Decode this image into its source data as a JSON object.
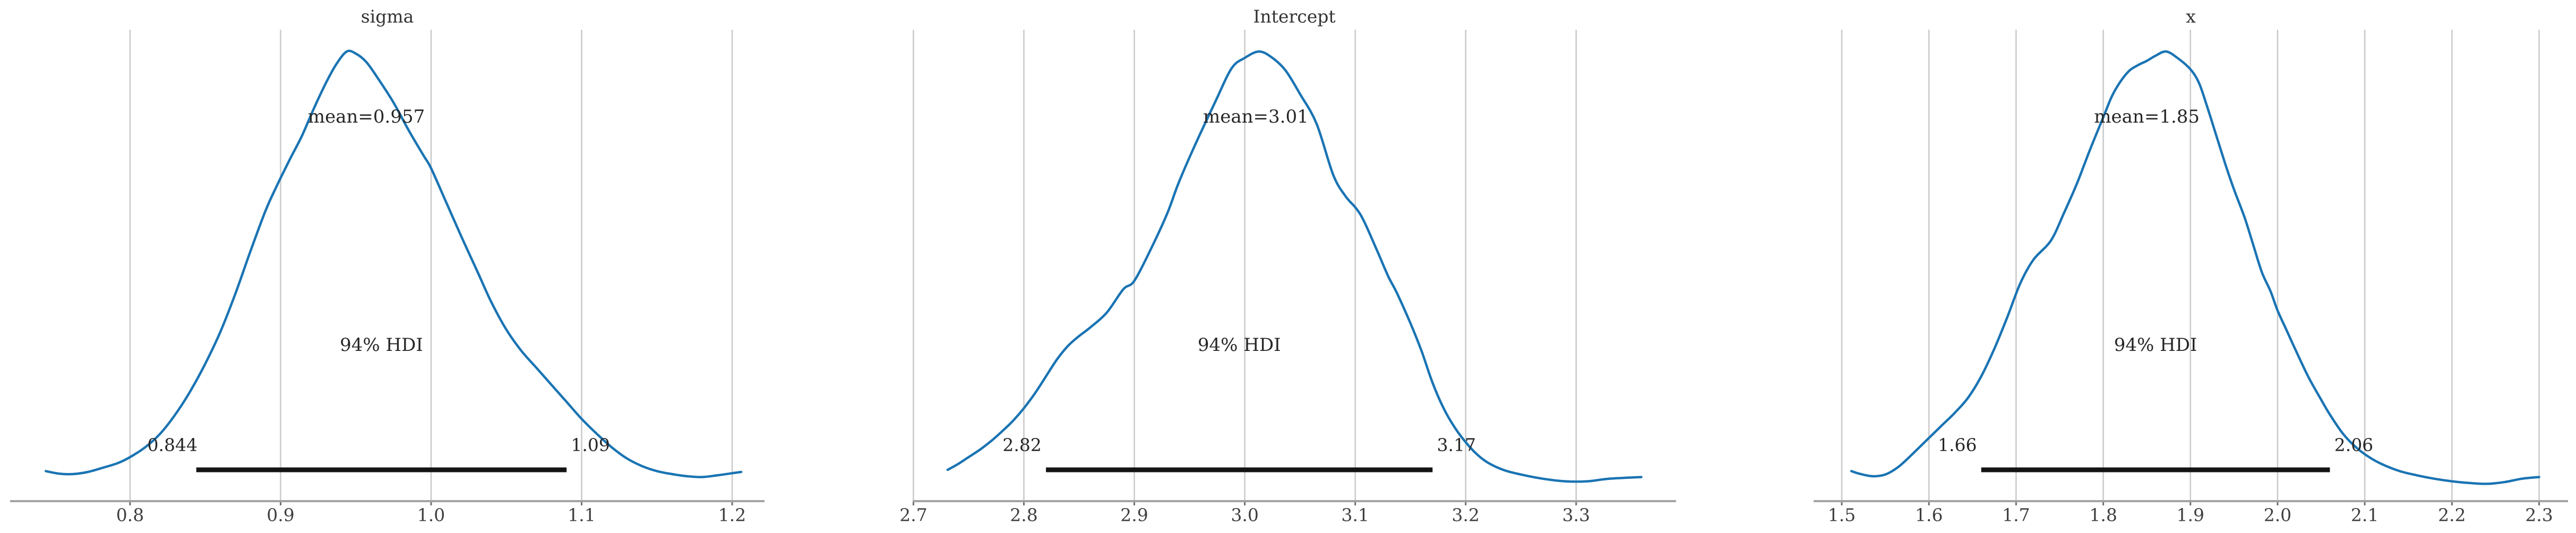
{
  "figure": {
    "background": "#ffffff",
    "kind": "posterior-kde-grid",
    "hdi_probability_text": "94% HDI"
  },
  "colors": {
    "curve": "#1a74b3",
    "hdi_bar": "#141414",
    "axis_line": "#a3a3a3",
    "grid_line": "#c9c9c9",
    "tick_mark": "#707070",
    "tick_label_text": "#3f3f3f",
    "title_text": "#333333",
    "annotation_text": "#262626"
  },
  "chart_data": [
    {
      "type": "kde",
      "title": "sigma",
      "mean": 0.957,
      "mean_label": "mean=0.957",
      "hdi_low": 0.844,
      "hdi_high": 1.09,
      "hdi_low_label": "0.844",
      "hdi_high_label": "1.09",
      "hdi_text": "94% HDI",
      "grid": true,
      "legend_position": "none",
      "xlim": [
        0.7203,
        1.2215
      ],
      "ticks": [
        0.8,
        0.9,
        1.0,
        1.1,
        1.2
      ],
      "tick_labels": [
        "0.8",
        "0.9",
        "1.0",
        "1.1",
        "1.2"
      ],
      "curve": {
        "x": [
          0.744,
          0.753,
          0.762,
          0.772,
          0.782,
          0.792,
          0.8,
          0.81,
          0.82,
          0.83,
          0.84,
          0.85,
          0.86,
          0.87,
          0.88,
          0.89,
          0.897,
          0.906,
          0.914,
          0.922,
          0.93,
          0.937,
          0.944,
          0.95,
          0.957,
          0.965,
          0.975,
          0.985,
          0.995,
          1.0,
          1.01,
          1.02,
          1.031,
          1.04,
          1.05,
          1.06,
          1.07,
          1.08,
          1.09,
          1.1,
          1.11,
          1.12,
          1.13,
          1.14,
          1.15,
          1.16,
          1.17,
          1.18,
          1.19,
          1.2,
          1.206
        ],
        "y_norm": [
          0.012,
          0.006,
          0.005,
          0.01,
          0.02,
          0.031,
          0.045,
          0.068,
          0.1,
          0.145,
          0.2,
          0.265,
          0.34,
          0.43,
          0.53,
          0.625,
          0.68,
          0.745,
          0.8,
          0.865,
          0.925,
          0.97,
          1.0,
          0.995,
          0.975,
          0.935,
          0.88,
          0.815,
          0.755,
          0.725,
          0.645,
          0.565,
          0.48,
          0.41,
          0.345,
          0.295,
          0.255,
          0.215,
          0.175,
          0.135,
          0.1,
          0.068,
          0.042,
          0.024,
          0.012,
          0.005,
          0.0,
          -0.002,
          0.002,
          0.007,
          0.01
        ]
      }
    },
    {
      "type": "kde",
      "title": "Intercept",
      "mean": 3.01,
      "mean_label": "mean=3.01",
      "hdi_low": 2.82,
      "hdi_high": 3.17,
      "hdi_low_label": "2.82",
      "hdi_high_label": "3.17",
      "hdi_text": "94% HDI",
      "grid": true,
      "legend_position": "none",
      "xlim": [
        2.6993,
        3.3905
      ],
      "ticks": [
        2.7,
        2.8,
        2.9,
        3.0,
        3.1,
        3.2,
        3.3
      ],
      "tick_labels": [
        "2.7",
        "2.8",
        "2.9",
        "3.0",
        "3.1",
        "3.2",
        "3.3"
      ],
      "curve": {
        "x": [
          2.731,
          2.74,
          2.75,
          2.76,
          2.77,
          2.78,
          2.79,
          2.8,
          2.81,
          2.82,
          2.83,
          2.84,
          2.85,
          2.86,
          2.875,
          2.89,
          2.9,
          2.915,
          2.93,
          2.94,
          2.955,
          2.973,
          2.988,
          3.0,
          3.013,
          3.025,
          3.037,
          3.05,
          3.065,
          3.08,
          3.091,
          3.101,
          3.108,
          3.12,
          3.13,
          3.138,
          3.15,
          3.16,
          3.17,
          3.18,
          3.19,
          3.2,
          3.21,
          3.22,
          3.235,
          3.25,
          3.27,
          3.29,
          3.31,
          3.33,
          3.359
        ],
        "y_norm": [
          0.015,
          0.028,
          0.045,
          0.062,
          0.082,
          0.105,
          0.13,
          0.16,
          0.195,
          0.235,
          0.275,
          0.307,
          0.33,
          0.35,
          0.385,
          0.44,
          0.46,
          0.535,
          0.62,
          0.69,
          0.78,
          0.88,
          0.96,
          0.985,
          1.0,
          0.985,
          0.955,
          0.9,
          0.83,
          0.71,
          0.66,
          0.63,
          0.6,
          0.53,
          0.47,
          0.43,
          0.36,
          0.295,
          0.22,
          0.16,
          0.115,
          0.08,
          0.052,
          0.032,
          0.014,
          0.004,
          -0.006,
          -0.012,
          -0.012,
          -0.006,
          -0.002
        ]
      }
    },
    {
      "type": "kde",
      "title": "x",
      "mean": 1.85,
      "mean_label": "mean=1.85",
      "hdi_low": 1.66,
      "hdi_high": 2.06,
      "hdi_low_label": "1.66",
      "hdi_high_label": "2.06",
      "hdi_text": "94% HDI",
      "grid": true,
      "legend_position": "none",
      "xlim": [
        1.4677,
        2.3332
      ],
      "ticks": [
        1.5,
        1.6,
        1.7,
        1.8,
        1.9,
        2.0,
        2.1,
        2.2,
        2.3
      ],
      "tick_labels": [
        "1.5",
        "1.6",
        "1.7",
        "1.8",
        "1.9",
        "2.0",
        "2.1",
        "2.2",
        "2.3"
      ],
      "curve": {
        "x": [
          1.511,
          1.52,
          1.535,
          1.55,
          1.565,
          1.58,
          1.6,
          1.615,
          1.63,
          1.645,
          1.66,
          1.675,
          1.69,
          1.705,
          1.72,
          1.74,
          1.755,
          1.77,
          1.785,
          1.8,
          1.81,
          1.82,
          1.83,
          1.84,
          1.85,
          1.86,
          1.872,
          1.885,
          1.9,
          1.91,
          1.92,
          1.93,
          1.94,
          1.95,
          1.962,
          1.972,
          1.982,
          1.992,
          2.0,
          2.01,
          2.02,
          2.035,
          2.05,
          2.06,
          2.075,
          2.09,
          2.105,
          2.12,
          2.14,
          2.16,
          2.18,
          2.2,
          2.22,
          2.24,
          2.26,
          2.28,
          2.3
        ],
        "y_norm": [
          0.012,
          0.006,
          0.0,
          0.004,
          0.022,
          0.05,
          0.09,
          0.12,
          0.15,
          0.185,
          0.235,
          0.3,
          0.375,
          0.455,
          0.51,
          0.555,
          0.62,
          0.69,
          0.77,
          0.845,
          0.895,
          0.93,
          0.955,
          0.968,
          0.978,
          0.99,
          1.0,
          0.985,
          0.958,
          0.925,
          0.865,
          0.8,
          0.735,
          0.675,
          0.61,
          0.545,
          0.48,
          0.435,
          0.39,
          0.345,
          0.3,
          0.235,
          0.18,
          0.145,
          0.1,
          0.068,
          0.045,
          0.028,
          0.012,
          0.002,
          -0.006,
          -0.012,
          -0.016,
          -0.018,
          -0.014,
          -0.006,
          -0.002
        ]
      }
    }
  ]
}
